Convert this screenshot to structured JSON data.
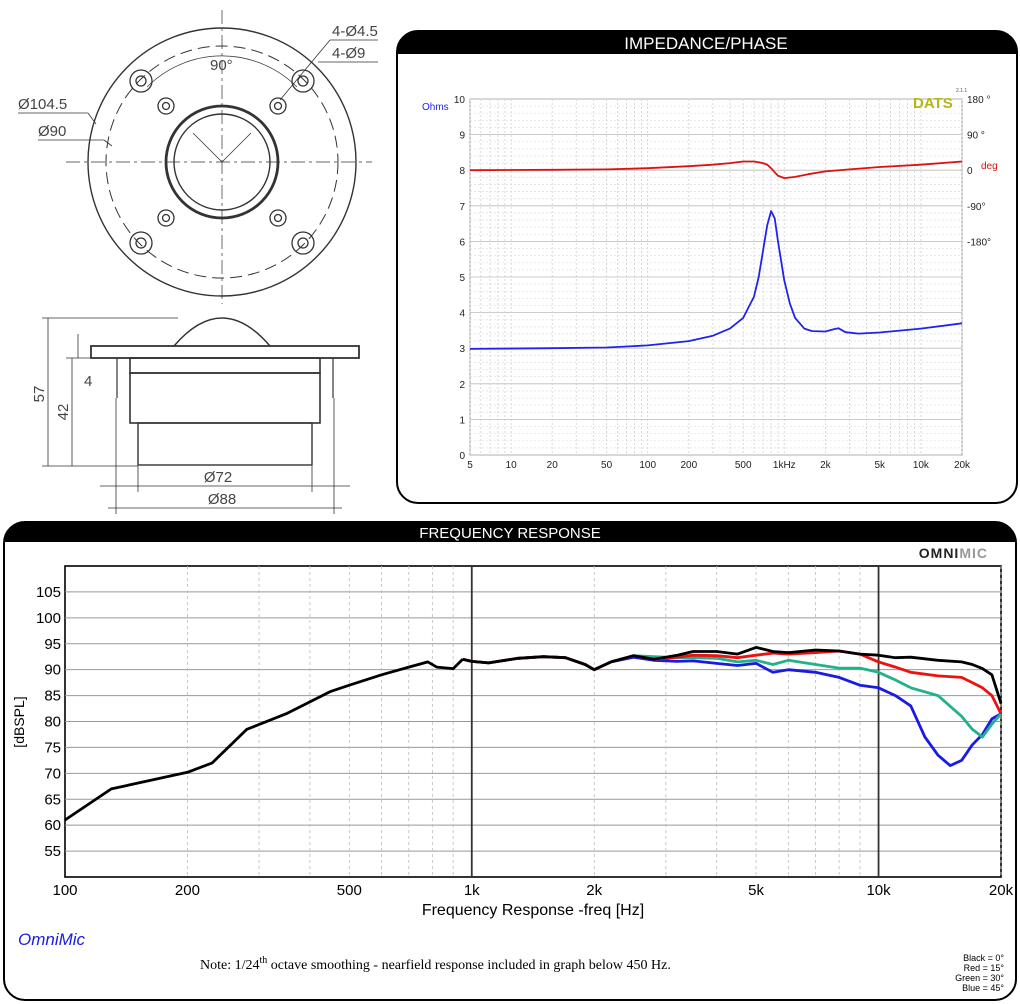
{
  "drawing": {
    "top_labels": {
      "holes_small": "4-Ø4.5",
      "holes_large": "4-Ø9",
      "angle": "90°",
      "outer_dia": "Ø104.5",
      "bolt_circle": "Ø90"
    },
    "side_labels": {
      "height_total": "57",
      "height_body": "42",
      "flange": "4",
      "body_dia": "Ø72",
      "flange_dia": "Ø88"
    }
  },
  "impedance_panel": {
    "title": "IMPEDANCE/PHASE",
    "brand": "DATS",
    "brand_version": "2.1.1",
    "colors": {
      "impedance": "#2222ee",
      "phase": "#dd1111",
      "brand": "#b5b519"
    }
  },
  "freq_panel": {
    "title": "FREQUENCY RESPONSE",
    "brand_left": "OMNI",
    "brand_right": "MIC",
    "software_label": "OmniMic",
    "note_prefix": "Note:  1/24",
    "note_sup": "th",
    "note_suffix": " octave smoothing - nearfield response included in graph below 450 Hz.",
    "legend": [
      "Black = 0°",
      "Red = 15°",
      "Green = 30°",
      "Blue = 45°"
    ]
  },
  "chart_data": [
    {
      "type": "line",
      "title": "IMPEDANCE/PHASE",
      "xscale": "log",
      "xlim": [
        5,
        20000
      ],
      "ylim": [
        0,
        10
      ],
      "ylabel": "Ohms",
      "y2lim": [
        -180,
        180
      ],
      "y2label": "deg",
      "grid": true,
      "x_ticks": [
        "5",
        "10",
        "20",
        "50",
        "100",
        "200",
        "500",
        "1kHz",
        "2k",
        "5k",
        "10k",
        "20k"
      ],
      "y_ticks": [
        "0",
        "1",
        "2",
        "3",
        "4",
        "5",
        "6",
        "7",
        "8",
        "9",
        "10"
      ],
      "y2_ticks": [
        "180 °",
        "90 °",
        "0 ",
        "-90°",
        "-180°"
      ],
      "series": [
        {
          "name": "",
          "axis": "left",
          "color": "#2222ee",
          "x": [
            5,
            20,
            50,
            100,
            200,
            300,
            400,
            500,
            600,
            650,
            700,
            750,
            800,
            850,
            900,
            1000,
            1100,
            1200,
            1400,
            1600,
            2000,
            2300,
            2500,
            2800,
            3500,
            5000,
            10000,
            20000
          ],
          "y": [
            2.98,
            3.0,
            3.02,
            3.08,
            3.2,
            3.35,
            3.55,
            3.85,
            4.45,
            5.0,
            5.75,
            6.45,
            6.85,
            6.65,
            6.0,
            4.9,
            4.25,
            3.85,
            3.55,
            3.48,
            3.47,
            3.53,
            3.56,
            3.45,
            3.41,
            3.44,
            3.55,
            3.7
          ]
        },
        {
          "name": "",
          "axis": "right",
          "color": "#dd1111",
          "x": [
            5,
            20,
            50,
            100,
            200,
            300,
            400,
            500,
            600,
            700,
            750,
            800,
            850,
            900,
            1000,
            1200,
            1500,
            2000,
            3000,
            5000,
            10000,
            20000
          ],
          "y": [
            0,
            1,
            2,
            5,
            10,
            14,
            18,
            22,
            22,
            18,
            14,
            5,
            -5,
            -14,
            -20,
            -17,
            -10,
            -3,
            2,
            8,
            14,
            22
          ]
        }
      ]
    },
    {
      "type": "line",
      "title": "FREQUENCY RESPONSE",
      "xlabel": "Frequency Response -freq [Hz]",
      "ylabel": "[dBSPL]",
      "xscale": "log",
      "xlim": [
        100,
        20000
      ],
      "ylim": [
        50,
        110
      ],
      "grid": true,
      "x_ticks": [
        "100",
        "200",
        "500",
        "1k",
        "2k",
        "5k",
        "10k",
        "20k"
      ],
      "y_ticks": [
        "55",
        "60",
        "65",
        "70",
        "75",
        "80",
        "85",
        "90",
        "95",
        "100",
        "105"
      ],
      "base_x": [
        100,
        130,
        200,
        230,
        280,
        350,
        450,
        500,
        600,
        700,
        780,
        820,
        900,
        950
      ],
      "base_y": [
        61,
        67,
        70.2,
        72,
        78.5,
        81.5,
        85.8,
        87,
        89,
        90.5,
        91.5,
        90.5,
        90.2,
        92
      ],
      "series": [
        {
          "name": "Black = 0°",
          "color": "#000000",
          "x": [
            950,
            1000,
            1100,
            1300,
            1500,
            1700,
            1900,
            2000,
            2200,
            2500,
            2800,
            3200,
            3500,
            4000,
            4500,
            5000,
            5500,
            6000,
            7000,
            8000,
            9000,
            10000,
            11000,
            12000,
            14000,
            16000,
            17000,
            18000,
            19000,
            20000
          ],
          "y": [
            92,
            91.6,
            91.3,
            92.2,
            92.5,
            92.3,
            91,
            90,
            91.5,
            92.7,
            92,
            92.8,
            93.5,
            93.5,
            93,
            94.3,
            93.5,
            93.3,
            93.8,
            93.6,
            93,
            92.8,
            92.3,
            92.4,
            91.8,
            91.5,
            91,
            90.2,
            89,
            83.5
          ]
        },
        {
          "name": "Red = 15°",
          "color": "#ee1111",
          "x": [
            950,
            1000,
            1100,
            1300,
            1500,
            1700,
            1900,
            2000,
            2200,
            2500,
            2800,
            3200,
            3500,
            4000,
            4500,
            5000,
            5500,
            6000,
            7000,
            8000,
            9000,
            10000,
            11000,
            12000,
            14000,
            16000,
            17000,
            18000,
            19000,
            20000
          ],
          "y": [
            92,
            91.6,
            91.3,
            92.2,
            92.5,
            92.3,
            91,
            90,
            91.5,
            92.7,
            92,
            92.4,
            92.8,
            92.7,
            92.3,
            92.8,
            93.2,
            93,
            93.3,
            93.6,
            93,
            91.5,
            90.5,
            89.5,
            88.8,
            88.5,
            87.5,
            86.5,
            85,
            81.5
          ]
        },
        {
          "name": "Green = 30°",
          "color": "#22b28a",
          "x": [
            950,
            1000,
            1100,
            1300,
            1500,
            1700,
            1900,
            2000,
            2200,
            2500,
            2800,
            3200,
            3500,
            4000,
            4500,
            5000,
            5500,
            6000,
            7000,
            8000,
            9000,
            10000,
            11000,
            12000,
            14000,
            16000,
            17000,
            18000,
            19000,
            20000
          ],
          "y": [
            92,
            91.6,
            91.3,
            92.2,
            92.5,
            92.3,
            91,
            90,
            91.5,
            92.7,
            92.5,
            92.3,
            92.3,
            92.2,
            91.5,
            91.8,
            91,
            91.8,
            91,
            90.3,
            90.3,
            89.5,
            88,
            86.5,
            85,
            81,
            78.5,
            77,
            79.5,
            81.5
          ]
        },
        {
          "name": "Blue = 45°",
          "color": "#1a1ae6",
          "x": [
            950,
            1000,
            1100,
            1300,
            1500,
            1700,
            1900,
            2000,
            2200,
            2500,
            2800,
            3200,
            3500,
            4000,
            4500,
            5000,
            5500,
            6000,
            7000,
            8000,
            9000,
            10000,
            11000,
            12000,
            13000,
            14000,
            15000,
            16000,
            17000,
            18000,
            19000,
            20000
          ],
          "y": [
            92,
            91.6,
            91.3,
            92.2,
            92.5,
            92.3,
            91,
            90,
            91.5,
            92.4,
            91.8,
            91.6,
            91.7,
            91.2,
            90.8,
            91.2,
            89.5,
            90,
            89.5,
            88.5,
            87,
            86.5,
            85,
            83,
            77,
            73.5,
            71.5,
            72.5,
            75.5,
            77.5,
            80.5,
            81.5
          ]
        }
      ]
    }
  ]
}
